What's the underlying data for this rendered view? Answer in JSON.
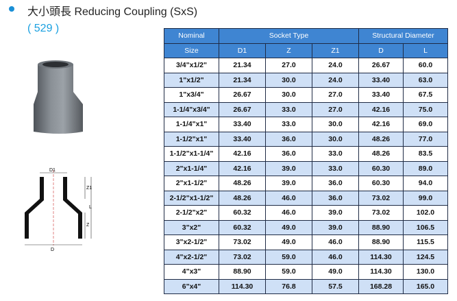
{
  "header": {
    "title": "大小頭長 Reducing Coupling (SxS)",
    "code": "( 529 )"
  },
  "drawing": {
    "labels": {
      "d1": "D1",
      "z1": "Z1",
      "z": "Z",
      "l": "L",
      "d": "D"
    }
  },
  "table": {
    "group_headers": {
      "nominal": "Nominal",
      "socket": "Socket Type",
      "structural": "Structural Diameter"
    },
    "sub_headers": {
      "size": "Size",
      "d1": "D1",
      "z": "Z",
      "z1": "Z1",
      "d": "D",
      "l": "L"
    },
    "rows": [
      [
        "3/4\"x1/2\"",
        "21.34",
        "27.0",
        "24.0",
        "26.67",
        "60.0"
      ],
      [
        "1\"x1/2\"",
        "21.34",
        "30.0",
        "24.0",
        "33.40",
        "63.0"
      ],
      [
        "1\"x3/4\"",
        "26.67",
        "30.0",
        "27.0",
        "33.40",
        "67.5"
      ],
      [
        "1-1/4\"x3/4\"",
        "26.67",
        "33.0",
        "27.0",
        "42.16",
        "75.0"
      ],
      [
        "1-1/4\"x1\"",
        "33.40",
        "33.0",
        "30.0",
        "42.16",
        "69.0"
      ],
      [
        "1-1/2\"x1\"",
        "33.40",
        "36.0",
        "30.0",
        "48.26",
        "77.0"
      ],
      [
        "1-1/2\"x1-1/4\"",
        "42.16",
        "36.0",
        "33.0",
        "48.26",
        "83.5"
      ],
      [
        "2\"x1-1/4\"",
        "42.16",
        "39.0",
        "33.0",
        "60.30",
        "89.0"
      ],
      [
        "2\"x1-1/2\"",
        "48.26",
        "39.0",
        "36.0",
        "60.30",
        "94.0"
      ],
      [
        "2-1/2\"x1-1/2\"",
        "48.26",
        "46.0",
        "36.0",
        "73.02",
        "99.0"
      ],
      [
        "2-1/2\"x2\"",
        "60.32",
        "46.0",
        "39.0",
        "73.02",
        "102.0"
      ],
      [
        "3\"x2\"",
        "60.32",
        "49.0",
        "39.0",
        "88.90",
        "106.5"
      ],
      [
        "3\"x2-1/2\"",
        "73.02",
        "49.0",
        "46.0",
        "88.90",
        "115.5"
      ],
      [
        "4\"x2-1/2\"",
        "73.02",
        "59.0",
        "46.0",
        "114.30",
        "124.5"
      ],
      [
        "4\"x3\"",
        "88.90",
        "59.0",
        "49.0",
        "114.30",
        "130.0"
      ],
      [
        "6\"x4\"",
        "114.30",
        "76.8",
        "57.5",
        "168.28",
        "165.0"
      ]
    ]
  },
  "colors": {
    "header_bg": "#3f85d2",
    "stripe": "#cfe0f6",
    "accent": "#1aa0e0"
  }
}
